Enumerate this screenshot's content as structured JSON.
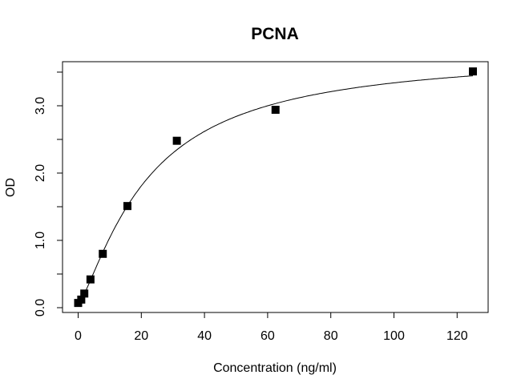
{
  "chart_data": {
    "type": "scatter",
    "title": "PCNA",
    "xlabel": "Concentration (ng/ml)",
    "ylabel": "OD",
    "xlim": [
      -5,
      130
    ],
    "ylim": [
      -0.1,
      3.6
    ],
    "x_ticks": [
      0,
      20,
      40,
      60,
      80,
      100,
      120
    ],
    "x_tick_labels": [
      "0",
      "20",
      "40",
      "60",
      "80",
      "100",
      "120"
    ],
    "y_ticks": [
      0,
      0.5,
      1,
      1.5,
      2,
      2.5,
      3,
      3.5
    ],
    "y_tick_labels": [
      "0.0",
      "",
      "1.0",
      "",
      "2.0",
      "",
      "3.0",
      ""
    ],
    "grid": false,
    "fit_curve": true,
    "marker": "square",
    "colors": {
      "points": "#000000",
      "curve": "#000000"
    },
    "points": {
      "x": [
        0,
        0.98,
        1.95,
        3.9,
        7.8,
        15.6,
        31.25,
        62.5,
        125
      ],
      "y": [
        0.07,
        0.12,
        0.21,
        0.42,
        0.8,
        1.51,
        2.48,
        2.94,
        3.51
      ]
    }
  }
}
